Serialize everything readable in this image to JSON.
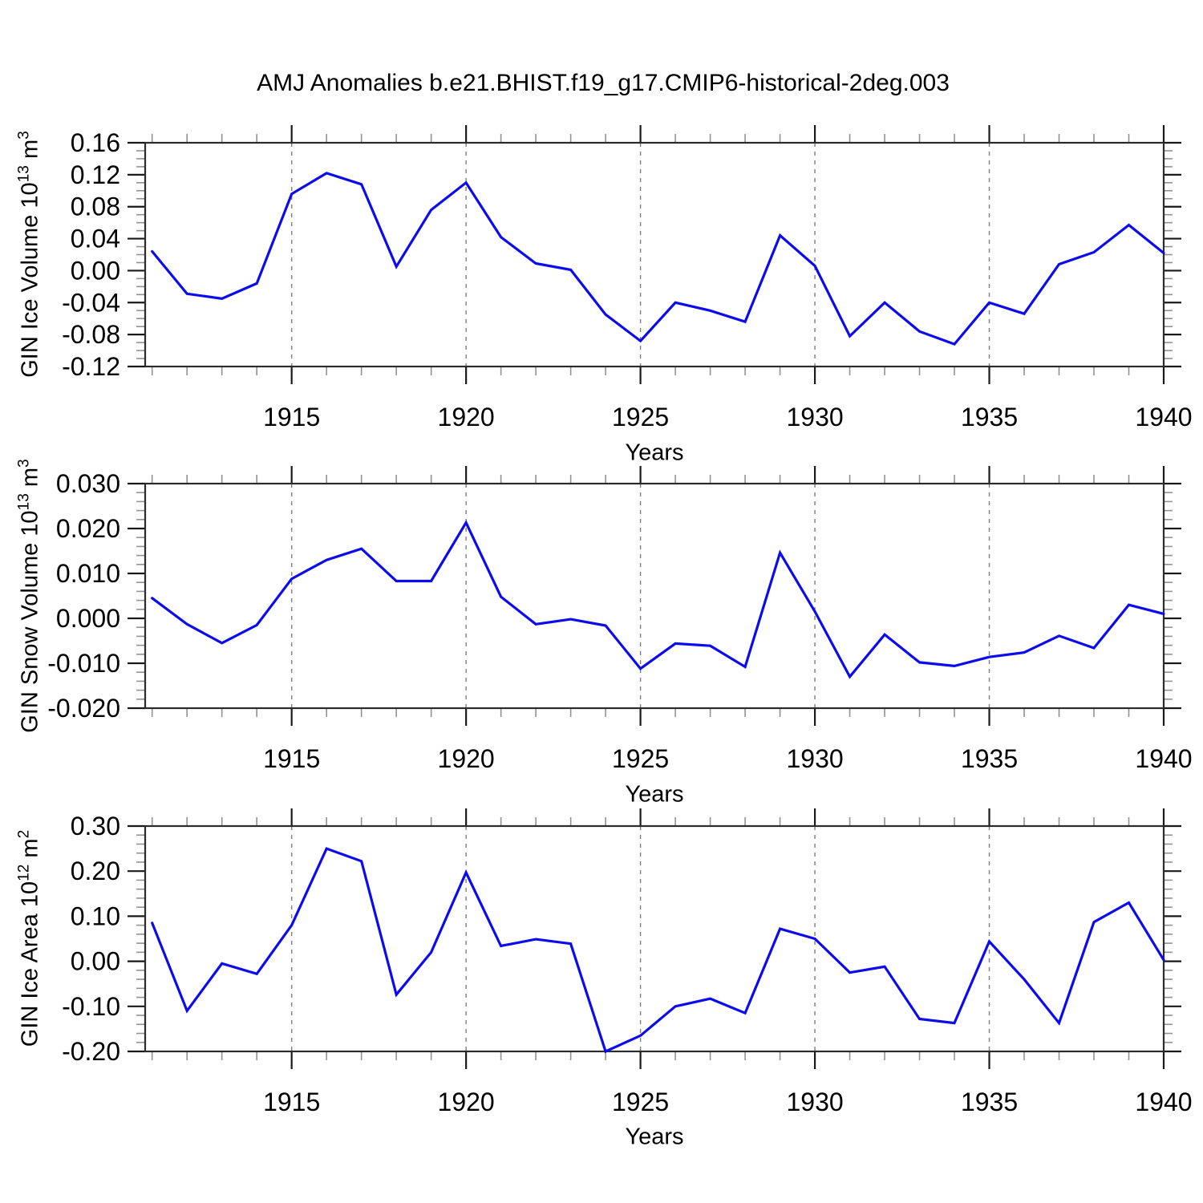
{
  "title": "AMJ Anomalies b.e21.BHIST.f19_g17.CMIP6-historical-2deg.003",
  "chart_data": [
    {
      "type": "line",
      "name": "gin-ice-volume",
      "ylabel": "GIN Ice Volume 10^13 m^3",
      "ylabel_parts": [
        "GIN Ice Volume 10",
        "13",
        " m",
        "3"
      ],
      "xlabel": "Years",
      "x": [
        1911,
        1912,
        1913,
        1914,
        1915,
        1916,
        1917,
        1918,
        1919,
        1920,
        1921,
        1922,
        1923,
        1924,
        1925,
        1926,
        1927,
        1928,
        1929,
        1930,
        1931,
        1932,
        1933,
        1934,
        1935,
        1936,
        1937,
        1938,
        1939,
        1940
      ],
      "values": [
        0.024,
        -0.029,
        -0.035,
        -0.016,
        0.096,
        0.122,
        0.108,
        0.005,
        0.076,
        0.11,
        0.042,
        0.009,
        0.001,
        -0.055,
        -0.088,
        -0.04,
        -0.05,
        -0.064,
        0.044,
        0.006,
        -0.082,
        -0.04,
        -0.076,
        -0.092,
        -0.04,
        -0.054,
        0.008,
        0.023,
        0.057,
        0.022
      ],
      "xlim": [
        1910.8,
        1940
      ],
      "ylim": [
        -0.12,
        0.16
      ],
      "xticks_major": [
        1915,
        1920,
        1925,
        1930,
        1935,
        1940
      ],
      "grid_x": [
        1915,
        1920,
        1925,
        1930,
        1935
      ],
      "ytick_values": [
        0.16,
        0.12,
        0.08,
        0.04,
        0.0,
        -0.04,
        -0.08,
        -0.12
      ],
      "ytick_labels": [
        "0.16",
        "0.12",
        "0.08",
        "0.04",
        "0.00",
        "-0.04",
        "-0.08",
        "-0.12"
      ],
      "yminor_step": 0.01,
      "legend": "none",
      "grid": "vertical dashed at 5-year ticks"
    },
    {
      "type": "line",
      "name": "gin-snow-volume",
      "ylabel": "GIN Snow Volume 10^13 m^3",
      "ylabel_parts": [
        "GIN Snow Volume 10",
        "13",
        " m",
        "3"
      ],
      "xlabel": "Years",
      "x": [
        1911,
        1912,
        1913,
        1914,
        1915,
        1916,
        1917,
        1918,
        1919,
        1920,
        1921,
        1922,
        1923,
        1924,
        1925,
        1926,
        1927,
        1928,
        1929,
        1930,
        1931,
        1932,
        1933,
        1934,
        1935,
        1936,
        1937,
        1938,
        1939,
        1940
      ],
      "values": [
        0.0045,
        -0.0013,
        -0.0055,
        -0.0015,
        0.0088,
        0.013,
        0.0155,
        0.0083,
        0.0083,
        0.0213,
        0.0048,
        -0.0013,
        -0.0002,
        -0.0016,
        -0.0112,
        -0.0056,
        -0.0061,
        -0.0108,
        0.0146,
        0.0015,
        -0.013,
        -0.0036,
        -0.0098,
        -0.0106,
        -0.0086,
        -0.0076,
        -0.0039,
        -0.0066,
        0.003,
        0.001
      ],
      "xlim": [
        1910.8,
        1940
      ],
      "ylim": [
        -0.02,
        0.03
      ],
      "xticks_major": [
        1915,
        1920,
        1925,
        1930,
        1935,
        1940
      ],
      "grid_x": [
        1915,
        1920,
        1925,
        1930,
        1935
      ],
      "ytick_values": [
        0.03,
        0.02,
        0.01,
        0.0,
        -0.01,
        -0.02
      ],
      "ytick_labels": [
        "0.030",
        "0.020",
        "0.010",
        "0.000",
        "-0.010",
        "-0.020"
      ],
      "yminor_step": 0.002,
      "legend": "none",
      "grid": "vertical dashed at 5-year ticks"
    },
    {
      "type": "line",
      "name": "gin-ice-area",
      "ylabel": "GIN Ice Area 10^12 m^2",
      "ylabel_parts": [
        "GIN Ice Area 10",
        "12",
        " m",
        "2"
      ],
      "xlabel": "Years",
      "x": [
        1911,
        1912,
        1913,
        1914,
        1915,
        1916,
        1917,
        1918,
        1919,
        1920,
        1921,
        1922,
        1923,
        1924,
        1925,
        1926,
        1927,
        1928,
        1929,
        1930,
        1931,
        1932,
        1933,
        1934,
        1935,
        1936,
        1937,
        1938,
        1939,
        1940
      ],
      "values": [
        0.085,
        -0.11,
        -0.005,
        -0.028,
        0.08,
        0.25,
        0.222,
        -0.074,
        0.02,
        0.197,
        0.034,
        0.049,
        0.039,
        -0.2,
        -0.165,
        -0.1,
        -0.083,
        -0.115,
        0.072,
        0.05,
        -0.025,
        -0.012,
        -0.128,
        -0.137,
        0.044,
        -0.04,
        -0.137,
        0.087,
        0.13,
        0.003
      ],
      "xlim": [
        1910.8,
        1940
      ],
      "ylim": [
        -0.2,
        0.3
      ],
      "xticks_major": [
        1915,
        1920,
        1925,
        1930,
        1935,
        1940
      ],
      "grid_x": [
        1915,
        1920,
        1925,
        1930,
        1935
      ],
      "ytick_values": [
        0.3,
        0.2,
        0.1,
        0.0,
        -0.1,
        -0.2
      ],
      "ytick_labels": [
        "0.30",
        "0.20",
        "0.10",
        "0.00",
        "-0.10",
        "-0.20"
      ],
      "yminor_step": 0.02,
      "legend": "none",
      "grid": "vertical dashed at 5-year ticks"
    }
  ],
  "style": {
    "line_color": "#0b0bee",
    "axis_color": "#2b2b2b",
    "major_tick_color": "#1a1a1a",
    "minor_tick_color": "#929292",
    "grid_color": "#7e7e7e",
    "text_color": "#000000",
    "background": "#ffffff"
  }
}
